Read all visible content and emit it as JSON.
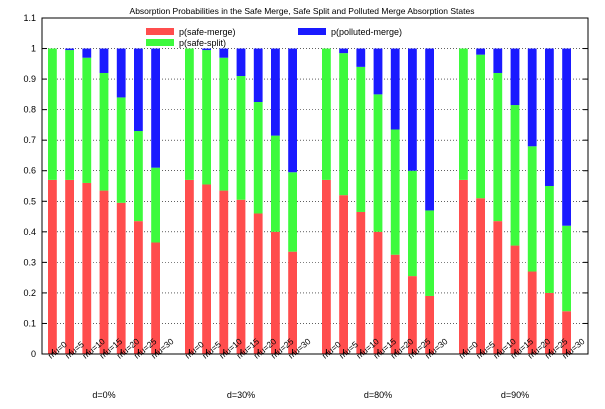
{
  "chart_data": {
    "type": "bar",
    "stacked": true,
    "title": "Absorption Probabilities in the Safe Merge, Safe Split and Polluted Merge Absorption States",
    "xlabel": "",
    "ylabel": "",
    "ylim": [
      0,
      1.1
    ],
    "yticks": [
      "0",
      "0.1",
      "0.2",
      "0.3",
      "0.4",
      "0.5",
      "0.6",
      "0.7",
      "0.8",
      "0.9",
      "1",
      "1.1"
    ],
    "grid": "horizontal dotted",
    "legend_position": "top-center",
    "categories": [
      "mu=0",
      "mu=5",
      "mu=10",
      "mu=15",
      "mu=20",
      "mu=25",
      "mu=30"
    ],
    "groups": [
      "d=0%",
      "d=30%",
      "d=80%",
      "d=90%"
    ],
    "colors": {
      "p(safe-merge)": "#ff4d4d",
      "p(safe-split)": "#3dfa3d",
      "p(polluted-merge)": "#1a1aff"
    },
    "series": [
      {
        "name": "p(safe-merge)",
        "values": [
          [
            0.57,
            0.57,
            0.56,
            0.535,
            0.495,
            0.435,
            0.365
          ],
          [
            0.57,
            0.555,
            0.535,
            0.505,
            0.46,
            0.4,
            0.335
          ],
          [
            0.57,
            0.52,
            0.465,
            0.4,
            0.325,
            0.255,
            0.19
          ],
          [
            0.57,
            0.51,
            0.435,
            0.355,
            0.27,
            0.2,
            0.14
          ]
        ]
      },
      {
        "name": "p(safe-split)",
        "values": [
          [
            0.43,
            0.425,
            0.41,
            0.385,
            0.345,
            0.295,
            0.245
          ],
          [
            0.43,
            0.44,
            0.435,
            0.405,
            0.365,
            0.315,
            0.26
          ],
          [
            0.43,
            0.465,
            0.475,
            0.45,
            0.41,
            0.345,
            0.28
          ],
          [
            0.43,
            0.47,
            0.485,
            0.46,
            0.41,
            0.35,
            0.28
          ]
        ]
      },
      {
        "name": "p(polluted-merge)",
        "values": [
          [
            0.0,
            0.005,
            0.03,
            0.08,
            0.16,
            0.27,
            0.39
          ],
          [
            0.0,
            0.005,
            0.03,
            0.09,
            0.175,
            0.285,
            0.405
          ],
          [
            0.0,
            0.015,
            0.06,
            0.15,
            0.265,
            0.4,
            0.53
          ],
          [
            0.0,
            0.02,
            0.08,
            0.185,
            0.32,
            0.45,
            0.58
          ]
        ]
      }
    ]
  }
}
